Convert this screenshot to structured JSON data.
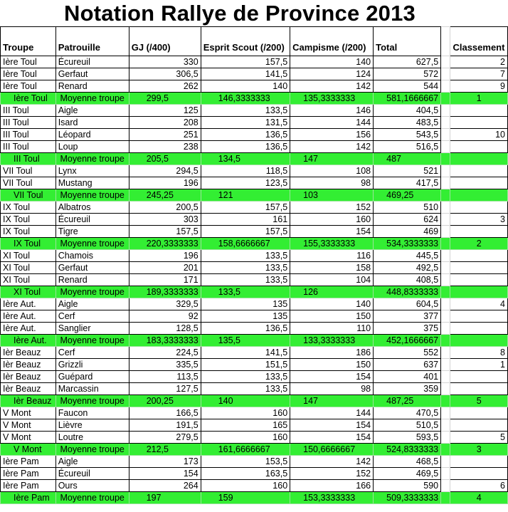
{
  "title": "Notation Rallye de Province 2013",
  "headers": {
    "troupe": "Troupe",
    "patrouille": "Patrouille",
    "gj": "GJ (/400)",
    "esprit": "Esprit Scout (/200)",
    "campisme": "Campisme (/200)",
    "total": "Total",
    "classement": "Classement"
  },
  "rows": [
    {
      "type": "data",
      "troupe": "Ière Toul",
      "patrouille": "Écureuil",
      "gj": "330",
      "esprit": "157,5",
      "campisme": "140",
      "total": "627,5",
      "rank": "2"
    },
    {
      "type": "data",
      "troupe": "Ière Toul",
      "patrouille": "Gerfaut",
      "gj": "306,5",
      "esprit": "141,5",
      "campisme": "124",
      "total": "572",
      "rank": "7"
    },
    {
      "type": "data",
      "troupe": "Ière Toul",
      "patrouille": "Renard",
      "gj": "262",
      "esprit": "140",
      "campisme": "142",
      "total": "544",
      "rank": "9"
    },
    {
      "type": "avg",
      "troupe": "Ière Toul",
      "patrouille": "Moyenne troupe",
      "gj": "299,5",
      "esprit": "146,3333333",
      "campisme": "135,3333333",
      "total": "581,1666667",
      "rank": "1"
    },
    {
      "type": "data",
      "troupe": "III Toul",
      "patrouille": "Aigle",
      "gj": "125",
      "esprit": "133,5",
      "campisme": "146",
      "total": "404,5",
      "rank": ""
    },
    {
      "type": "data",
      "troupe": "III Toul",
      "patrouille": "Isard",
      "gj": "208",
      "esprit": "131,5",
      "campisme": "144",
      "total": "483,5",
      "rank": ""
    },
    {
      "type": "data",
      "troupe": "III Toul",
      "patrouille": "Léopard",
      "gj": "251",
      "esprit": "136,5",
      "campisme": "156",
      "total": "543,5",
      "rank": "10"
    },
    {
      "type": "data",
      "troupe": "III Toul",
      "patrouille": "Loup",
      "gj": "238",
      "esprit": "136,5",
      "campisme": "142",
      "total": "516,5",
      "rank": ""
    },
    {
      "type": "avg",
      "troupe": "III Toul",
      "patrouille": "Moyenne troupe",
      "gj": "205,5",
      "esprit": "134,5",
      "campisme": "147",
      "total": "487",
      "rank": ""
    },
    {
      "type": "data",
      "troupe": "VII Toul",
      "patrouille": "Lynx",
      "gj": "294,5",
      "esprit": "118,5",
      "campisme": "108",
      "total": "521",
      "rank": ""
    },
    {
      "type": "data",
      "troupe": "VII Toul",
      "patrouille": "Mustang",
      "gj": "196",
      "esprit": "123,5",
      "campisme": "98",
      "total": "417,5",
      "rank": ""
    },
    {
      "type": "avg",
      "troupe": "VII Toul",
      "patrouille": "Moyenne troupe",
      "gj": "245,25",
      "esprit": "121",
      "campisme": "103",
      "total": "469,25",
      "rank": ""
    },
    {
      "type": "data",
      "troupe": "IX Toul",
      "patrouille": "Albatros",
      "gj": "200,5",
      "esprit": "157,5",
      "campisme": "152",
      "total": "510",
      "rank": ""
    },
    {
      "type": "data",
      "troupe": "IX Toul",
      "patrouille": "Écureuil",
      "gj": "303",
      "esprit": "161",
      "campisme": "160",
      "total": "624",
      "rank": "3"
    },
    {
      "type": "data",
      "troupe": "IX Toul",
      "patrouille": "Tigre",
      "gj": "157,5",
      "esprit": "157,5",
      "campisme": "154",
      "total": "469",
      "rank": ""
    },
    {
      "type": "avg",
      "troupe": "IX Toul",
      "patrouille": "Moyenne troupe",
      "gj": "220,3333333",
      "esprit": "158,6666667",
      "campisme": "155,3333333",
      "total": "534,3333333",
      "rank": "2"
    },
    {
      "type": "data",
      "troupe": "XI Toul",
      "patrouille": "Chamois",
      "gj": "196",
      "esprit": "133,5",
      "campisme": "116",
      "total": "445,5",
      "rank": ""
    },
    {
      "type": "data",
      "troupe": "XI Toul",
      "patrouille": "Gerfaut",
      "gj": "201",
      "esprit": "133,5",
      "campisme": "158",
      "total": "492,5",
      "rank": ""
    },
    {
      "type": "data",
      "troupe": "XI Toul",
      "patrouille": "Renard",
      "gj": "171",
      "esprit": "133,5",
      "campisme": "104",
      "total": "408,5",
      "rank": ""
    },
    {
      "type": "avg",
      "troupe": "XI Toul",
      "patrouille": "Moyenne troupe",
      "gj": "189,3333333",
      "esprit": "133,5",
      "campisme": "126",
      "total": "448,8333333",
      "rank": ""
    },
    {
      "type": "data",
      "troupe": "Ière Aut.",
      "patrouille": "Aigle",
      "gj": "329,5",
      "esprit": "135",
      "campisme": "140",
      "total": "604,5",
      "rank": "4"
    },
    {
      "type": "data",
      "troupe": "Ière Aut.",
      "patrouille": "Cerf",
      "gj": "92",
      "esprit": "135",
      "campisme": "150",
      "total": "377",
      "rank": ""
    },
    {
      "type": "data",
      "troupe": "Ière Aut.",
      "patrouille": "Sanglier",
      "gj": "128,5",
      "esprit": "136,5",
      "campisme": "110",
      "total": "375",
      "rank": ""
    },
    {
      "type": "avg",
      "troupe": "Ière Aut.",
      "patrouille": "Moyenne troupe",
      "gj": "183,3333333",
      "esprit": "135,5",
      "campisme": "133,3333333",
      "total": "452,1666667",
      "rank": ""
    },
    {
      "type": "data",
      "troupe": "Ièr Beauz",
      "patrouille": "Cerf",
      "gj": "224,5",
      "esprit": "141,5",
      "campisme": "186",
      "total": "552",
      "rank": "8"
    },
    {
      "type": "data",
      "troupe": "Ièr Beauz",
      "patrouille": "Grizzli",
      "gj": "335,5",
      "esprit": "151,5",
      "campisme": "150",
      "total": "637",
      "rank": "1"
    },
    {
      "type": "data",
      "troupe": "Ièr Beauz",
      "patrouille": "Guépard",
      "gj": "113,5",
      "esprit": "133,5",
      "campisme": "154",
      "total": "401",
      "rank": ""
    },
    {
      "type": "data",
      "troupe": "Ièr Beauz",
      "patrouille": "Marcassin",
      "gj": "127,5",
      "esprit": "133,5",
      "campisme": "98",
      "total": "359",
      "rank": ""
    },
    {
      "type": "avg",
      "troupe": "Ièr Beauz",
      "patrouille": "Moyenne troupe",
      "gj": "200,25",
      "esprit": "140",
      "campisme": "147",
      "total": "487,25",
      "rank": "5"
    },
    {
      "type": "data",
      "troupe": "V Mont",
      "patrouille": "Faucon",
      "gj": "166,5",
      "esprit": "160",
      "campisme": "144",
      "total": "470,5",
      "rank": ""
    },
    {
      "type": "data",
      "troupe": "V Mont",
      "patrouille": "Lièvre",
      "gj": "191,5",
      "esprit": "165",
      "campisme": "154",
      "total": "510,5",
      "rank": ""
    },
    {
      "type": "data",
      "troupe": "V Mont",
      "patrouille": "Loutre",
      "gj": "279,5",
      "esprit": "160",
      "campisme": "154",
      "total": "593,5",
      "rank": "5"
    },
    {
      "type": "avg",
      "troupe": "V Mont",
      "patrouille": "Moyenne troupe",
      "gj": "212,5",
      "esprit": "161,6666667",
      "campisme": "150,6666667",
      "total": "524,8333333",
      "rank": "3"
    },
    {
      "type": "data",
      "troupe": "Ière Pam",
      "patrouille": "Aigle",
      "gj": "173",
      "esprit": "153,5",
      "campisme": "142",
      "total": "468,5",
      "rank": ""
    },
    {
      "type": "data",
      "troupe": "Ière Pam",
      "patrouille": "Écureuil",
      "gj": "154",
      "esprit": "163,5",
      "campisme": "152",
      "total": "469,5",
      "rank": ""
    },
    {
      "type": "data",
      "troupe": "Ière Pam",
      "patrouille": "Ours",
      "gj": "264",
      "esprit": "160",
      "campisme": "166",
      "total": "590",
      "rank": "6"
    },
    {
      "type": "avg",
      "troupe": "Ière Pam",
      "patrouille": "Moyenne troupe",
      "gj": "197",
      "esprit": "159",
      "campisme": "153,3333333",
      "total": "509,3333333",
      "rank": "4"
    }
  ]
}
